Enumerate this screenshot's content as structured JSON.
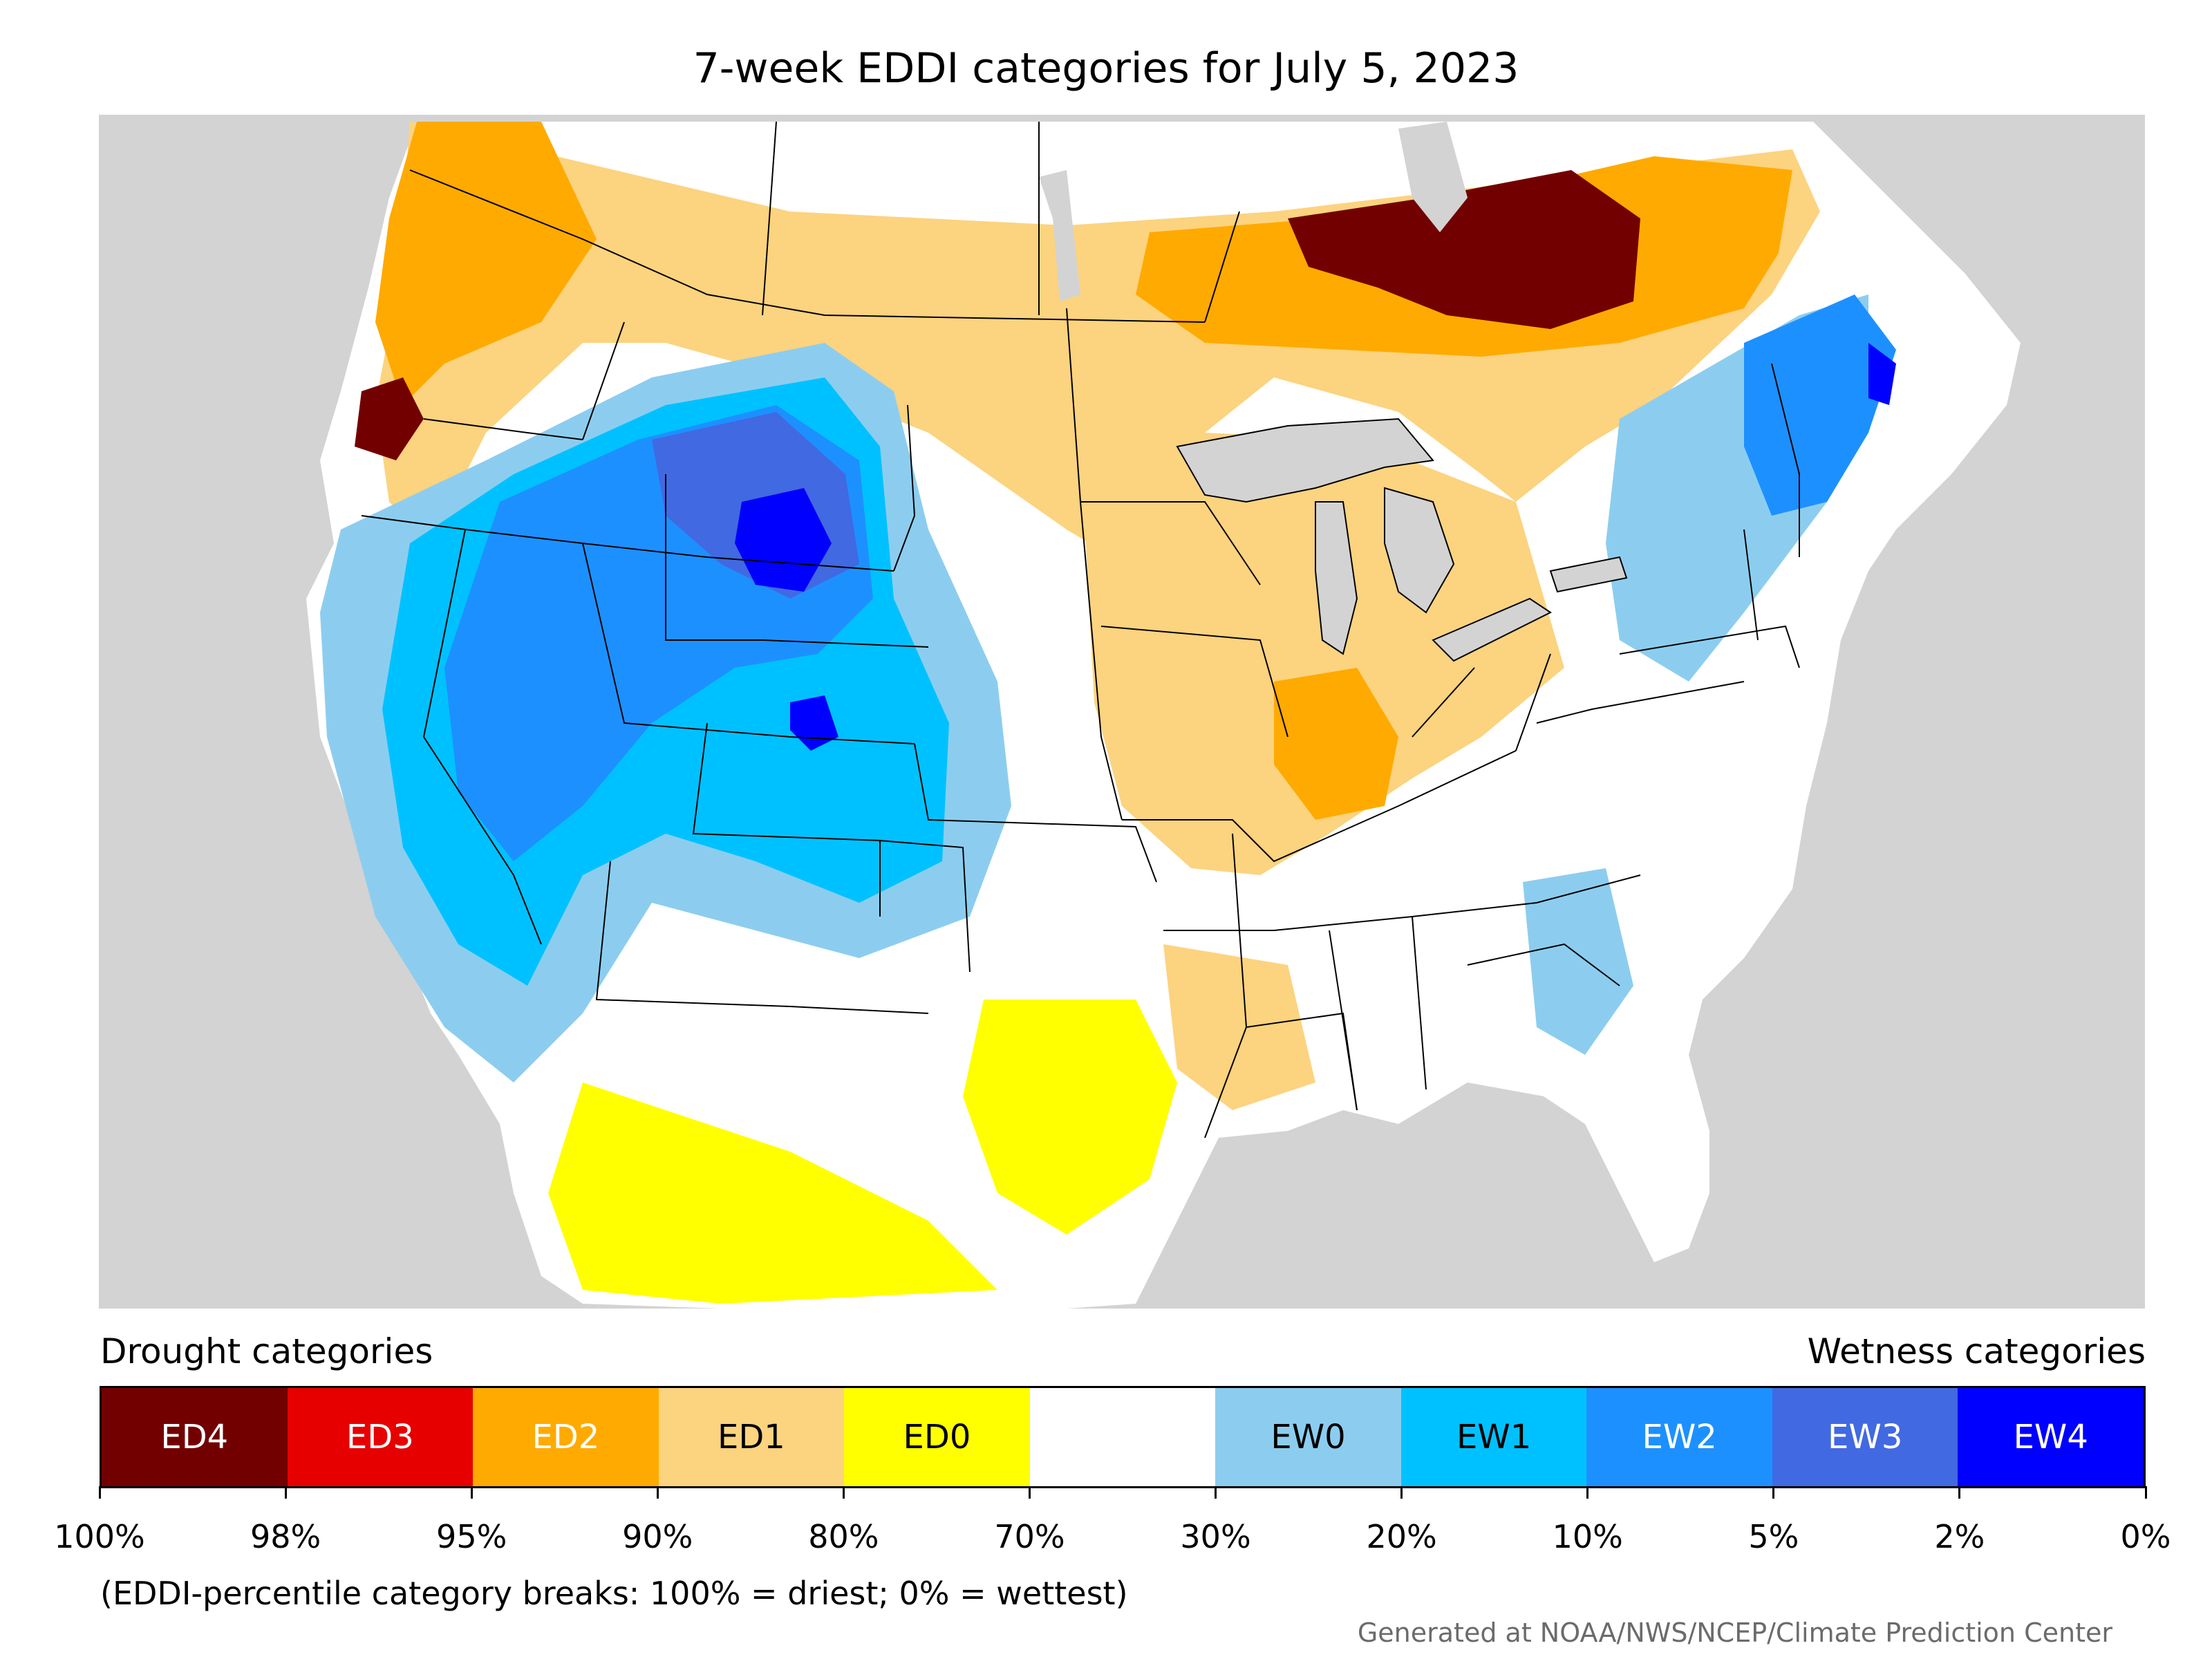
{
  "title": "7-week EDDI categories for July 5, 2023",
  "legend": {
    "drought_heading": "Drought categories",
    "wetness_heading": "Wetness categories",
    "categories": [
      {
        "label": "ED4",
        "color": "#730000",
        "text_color": "#ffffff"
      },
      {
        "label": "ED3",
        "color": "#e60000",
        "text_color": "#ffffff"
      },
      {
        "label": "ED2",
        "color": "#ffaa00",
        "text_color": "#ffffff"
      },
      {
        "label": "ED1",
        "color": "#fcd37f",
        "text_color": "#000000"
      },
      {
        "label": "ED0",
        "color": "#ffff00",
        "text_color": "#000000"
      },
      {
        "label": "",
        "color": "#ffffff",
        "text_color": "#000000"
      },
      {
        "label": "EW0",
        "color": "#8ccdef",
        "text_color": "#000000"
      },
      {
        "label": "EW1",
        "color": "#00c1ff",
        "text_color": "#000000"
      },
      {
        "label": "EW2",
        "color": "#1d90ff",
        "text_color": "#ffffff"
      },
      {
        "label": "EW3",
        "color": "#4169e1",
        "text_color": "#ffffff"
      },
      {
        "label": "EW4",
        "color": "#0000ff",
        "text_color": "#ffffff"
      }
    ],
    "breaks": [
      "100%",
      "98%",
      "95%",
      "90%",
      "80%",
      "70%",
      "30%",
      "20%",
      "10%",
      "5%",
      "2%",
      "0%"
    ],
    "note": "(EDDI-percentile category breaks: 100% = driest; 0% = wettest)"
  },
  "credit": "Generated at NOAA/NWS/NCEP/Climate Prediction Center",
  "map_colors": {
    "background": "#d3d3d3",
    "land": "#ffffff",
    "water": "#d3d3d3",
    "boundary": "#000000"
  }
}
